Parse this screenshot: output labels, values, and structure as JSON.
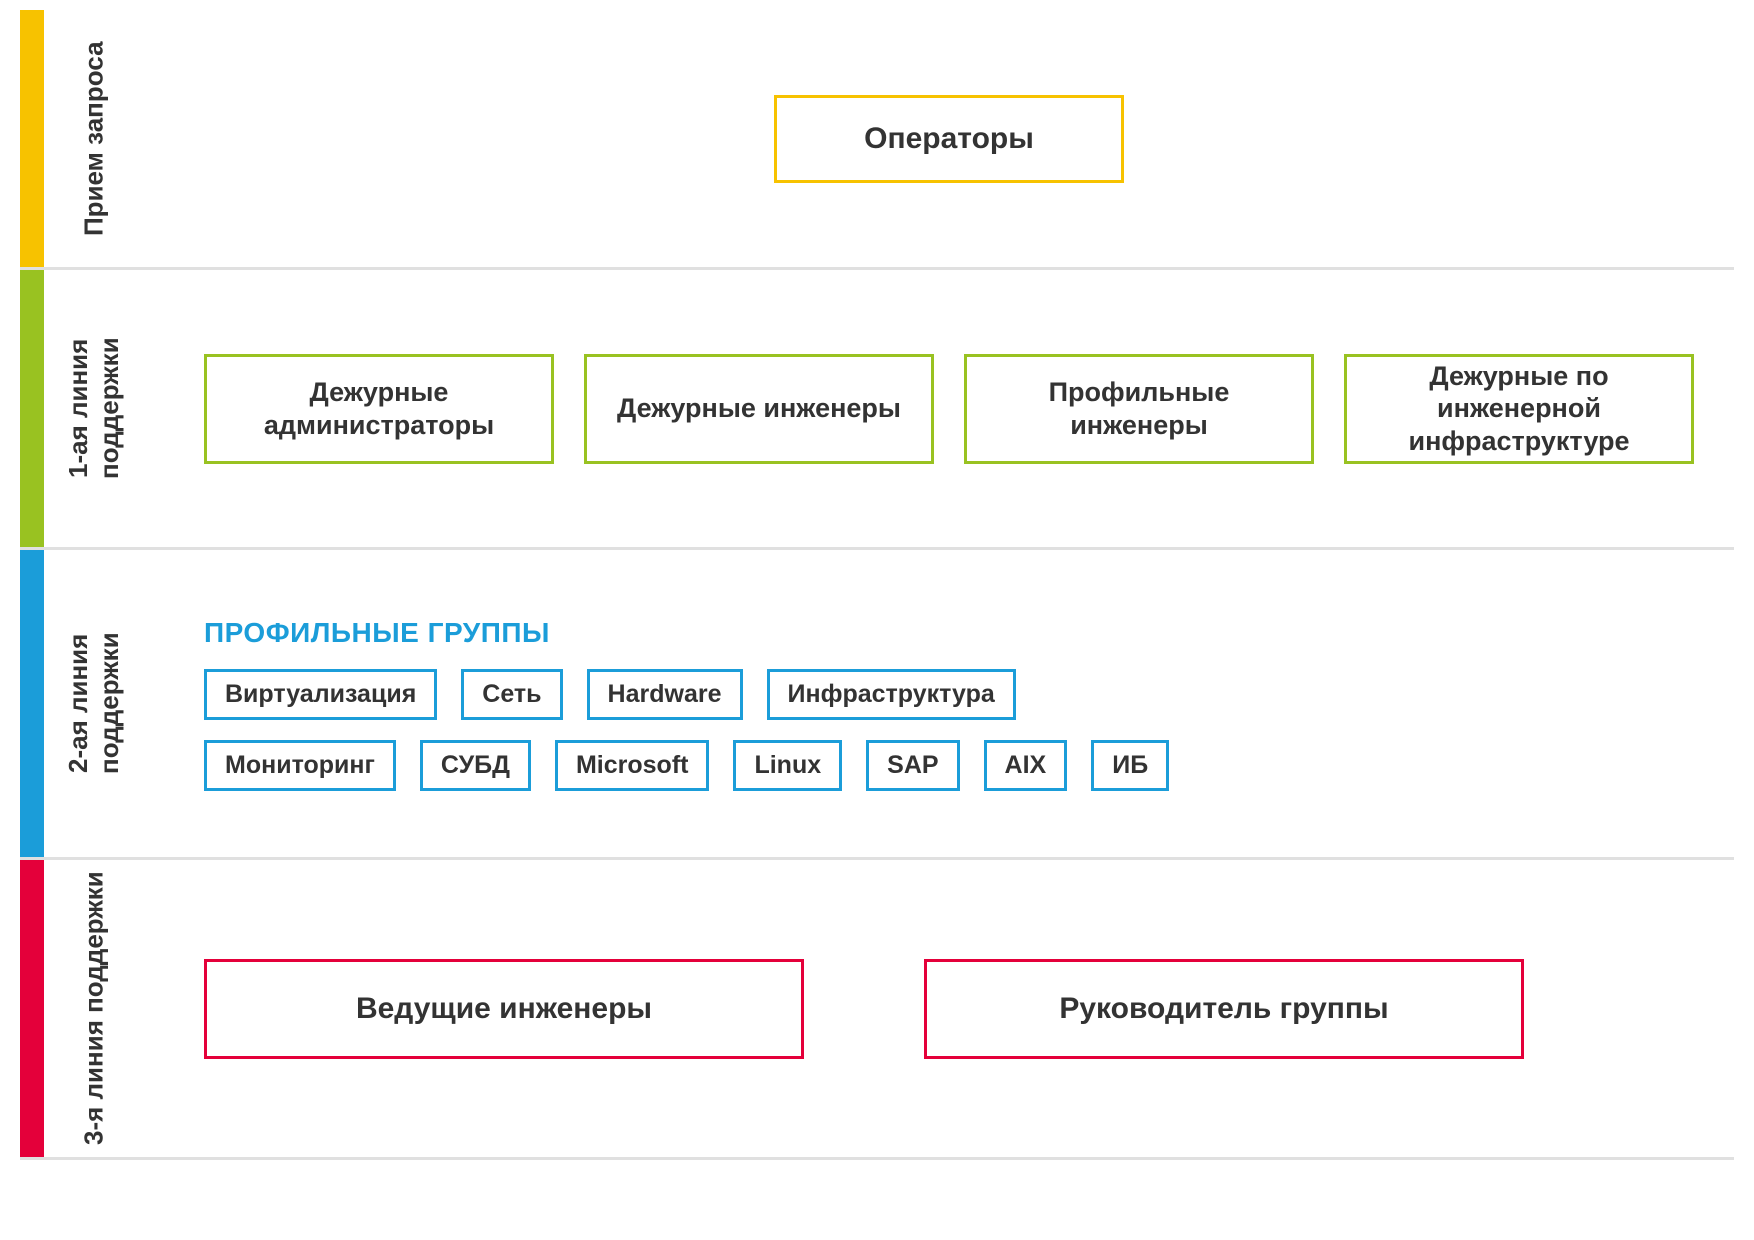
{
  "diagram": {
    "type": "tiered-infographic",
    "background_color": "#ffffff",
    "divider_color": "#e0e0e0",
    "text_color": "#333333",
    "rows": [
      {
        "label": "Прием\nзапроса",
        "bar_color": "#f7c200",
        "box_border_color": "#f7c200",
        "boxes": [
          {
            "text": "Операторы"
          }
        ]
      },
      {
        "label": "1-ая линия\nподдержки",
        "bar_color": "#99c221",
        "box_border_color": "#99c221",
        "boxes": [
          {
            "text": "Дежурные администраторы"
          },
          {
            "text": "Дежурные инженеры"
          },
          {
            "text": "Профильные инженеры"
          },
          {
            "text": "Дежурные по инженерной инфраструктуре"
          }
        ]
      },
      {
        "label": "2-ая линия\nподдержки",
        "bar_color": "#1b9dd9",
        "section_title": "ПРОФИЛЬНЫЕ ГРУППЫ",
        "section_title_color": "#1b9dd9",
        "chip_border_color": "#1b9dd9",
        "chip_rows": [
          [
            "Виртуализация",
            "Сеть",
            "Hardware",
            "Инфраструктура"
          ],
          [
            "Мониторинг",
            "СУБД",
            "Microsoft",
            "Linux",
            "SAP",
            "AIX",
            "ИБ"
          ]
        ]
      },
      {
        "label": "3-я линия\nподдержки",
        "bar_color": "#e4003a",
        "box_border_color": "#e4003a",
        "boxes": [
          {
            "text": "Ведущие инженеры"
          },
          {
            "text": "Руководитель группы"
          }
        ]
      }
    ]
  }
}
